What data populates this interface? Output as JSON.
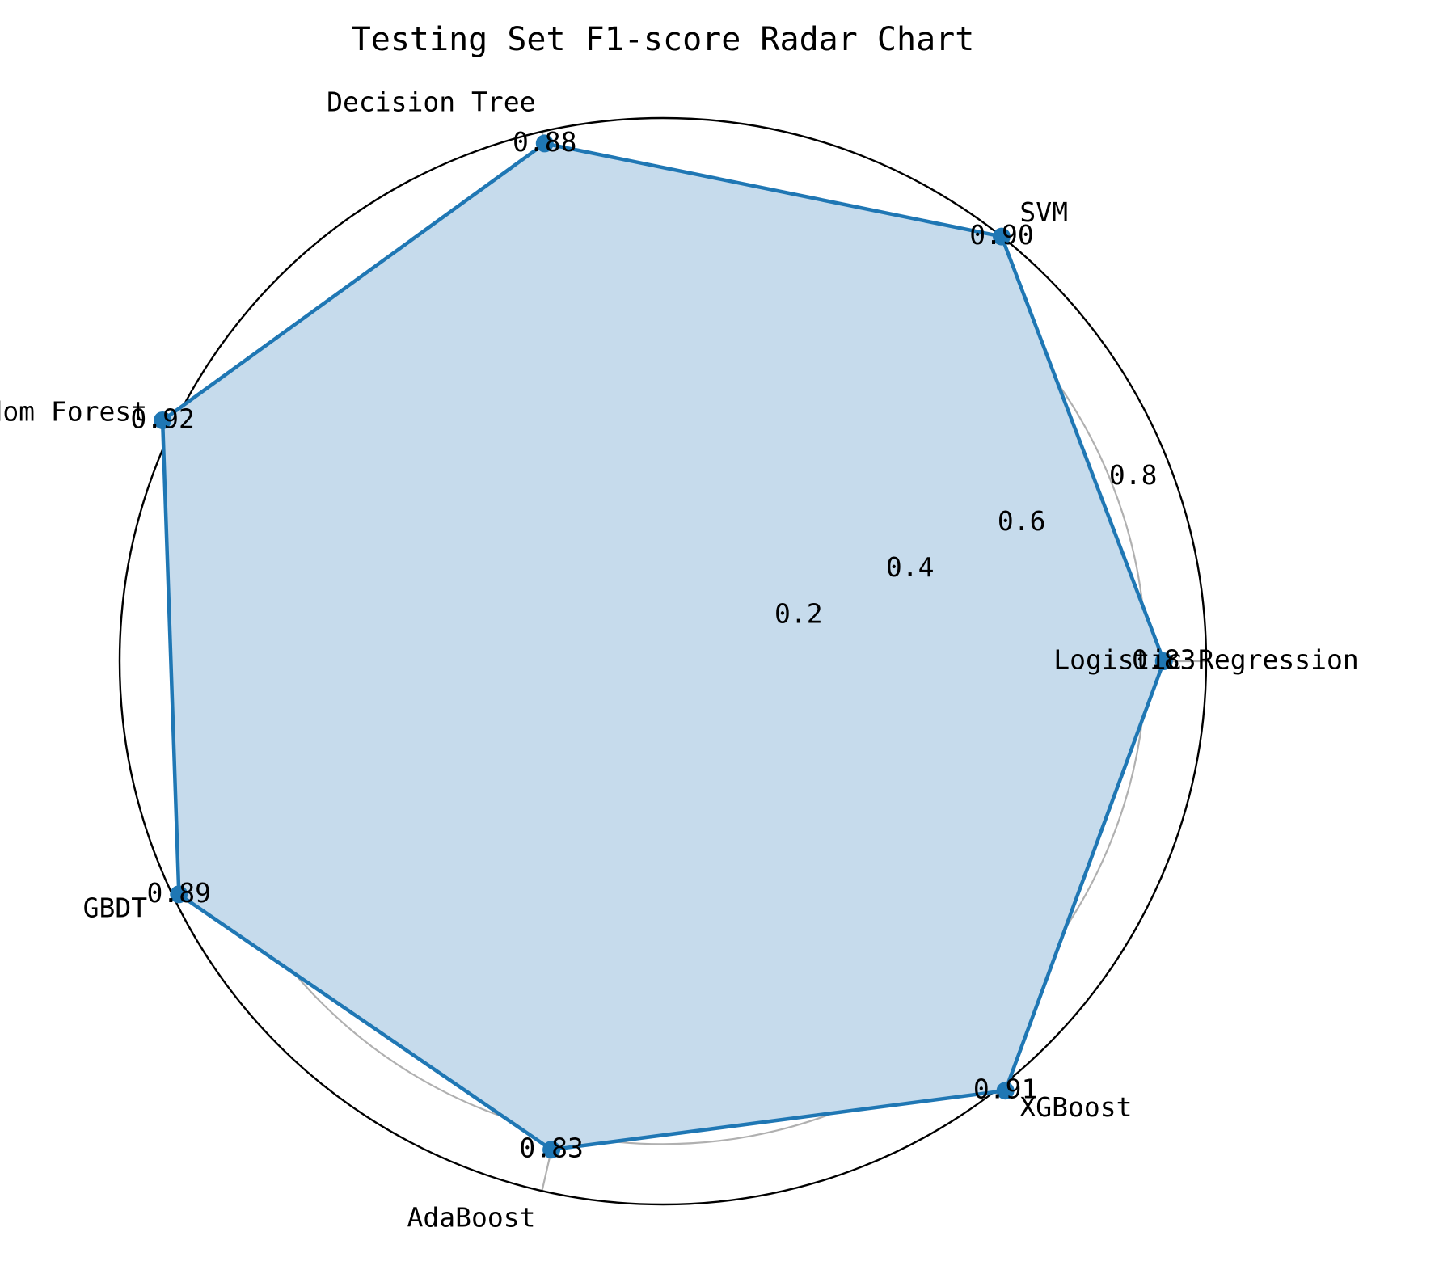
{
  "chart_data": {
    "type": "radar",
    "title": "Testing Set F1-score Radar Chart",
    "categories": [
      "Logistic Regression",
      "SVM",
      "Decision Tree",
      "Random Forest",
      "GBDT",
      "AdaBoost",
      "XGBoost"
    ],
    "series": [
      {
        "values": [
          0.83,
          0.9,
          0.88,
          0.92,
          0.89,
          0.83,
          0.91
        ],
        "value_labels": [
          "0.83",
          "0.90",
          "0.88",
          "0.92",
          "0.89",
          "0.83",
          "0.91"
        ],
        "color": "#1f77b4",
        "fill_color": "#c6dbec"
      }
    ],
    "rlim": [
      0,
      0.9
    ],
    "rticks": [
      0.2,
      0.4,
      0.6,
      0.8
    ],
    "rtick_labels": [
      "0.2",
      "0.4",
      "0.6",
      "0.8"
    ],
    "grid": true,
    "grid_color": "#b0b0b0"
  }
}
